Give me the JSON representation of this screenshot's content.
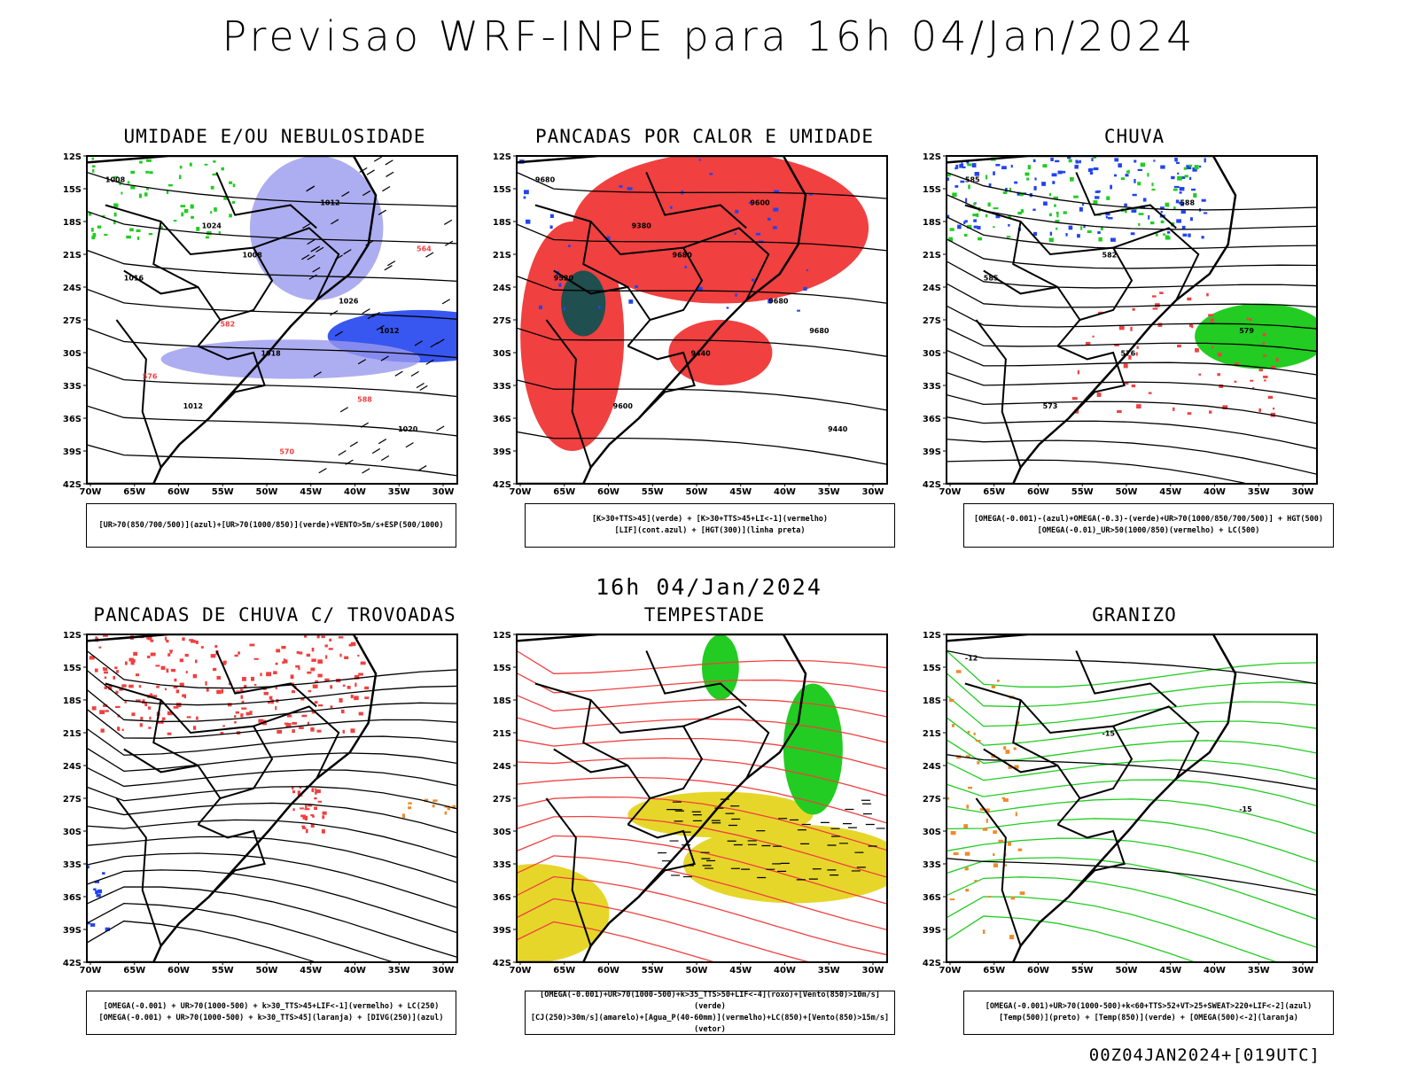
{
  "header": {
    "title": "Previsao WRF-INPE  para 16h 04/Jan/2024"
  },
  "middle_label": "16h 04/Jan/2024",
  "footer": {
    "stamp": "00Z04JAN2024+[019UTC]"
  },
  "axes": {
    "lat_ticks": [
      "12S",
      "15S",
      "18S",
      "21S",
      "24S",
      "27S",
      "30S",
      "33S",
      "36S",
      "39S",
      "42S"
    ],
    "lon_ticks": [
      "70W",
      "65W",
      "60W",
      "55W",
      "50W",
      "45W",
      "40W",
      "35W",
      "30W"
    ]
  },
  "colors": {
    "red": "#f04040",
    "green": "#22cc22",
    "blue": "#2244ee",
    "lightblue": "#9999ee",
    "darkgreen": "#1f4f4f",
    "yellow": "#e6d62a",
    "orange": "#f08a2a",
    "black": "#000000"
  },
  "panels": [
    {
      "title": "UMIDADE E/OU NEBULOSIDADE",
      "legend": [
        "[UR>70(850/700/500)](azul)+[UR>70(1000/850)](verde)+VENTO>5m/s+ESP(500/1000)"
      ],
      "labels": [
        "1008",
        "1008",
        "1012",
        "1012",
        "1012",
        "1016",
        "1018",
        "1020",
        "1024",
        "1026",
        "576",
        "570",
        "564",
        "582",
        "588"
      ]
    },
    {
      "title": "PANCADAS POR CALOR E UMIDADE",
      "legend": [
        "[K>30+TTS>45](verde) + [K>30+TTS>45+LI<-1](vermelho)",
        "[LIF](cont.azul) + [HGT(300)](linha preta)"
      ],
      "labels": [
        "9680",
        "9680",
        "9680",
        "9600",
        "9600",
        "9520",
        "9440",
        "9440",
        "9380",
        "9680"
      ]
    },
    {
      "title": "CHUVA",
      "legend": [
        "[OMEGA(-0.001)-(azul)+OMEGA(-0.3)-(verde)+UR>70(1000/850/700/500)] + HGT(500)",
        "[OMEGA(-0.01)_UR>50(1000/850)(vermelho) + LC(500)"
      ],
      "labels": [
        "585",
        "582",
        "579",
        "573",
        "588",
        "585",
        "576"
      ]
    },
    {
      "title": "PANCADAS DE CHUVA C/ TROVOADAS",
      "legend": [
        "[OMEGA(-0.001) + UR>70(1000-500) + k>30_TTS>45+LIF<-1](vermelho) + LC(250)",
        "[OMEGA(-0.001) + UR>70(1000-500) + k>30_TTS>45](laranja) + [DIVG(250)](azul)"
      ],
      "labels": []
    },
    {
      "title": "TEMPESTADE",
      "legend": [
        "[OMEGA(-0.001)+UR>70(1000-500)+k>35_TTS>50+LIF<-4](roxo)+[Vento(850)>10m/s](verde)",
        "[CJ(250)>30m/s](amarelo)+[Agua_P(40-60mm)](vermelho)+LC(850)+[Vento(850)>15m/s](vetor)"
      ],
      "labels": []
    },
    {
      "title": "GRANIZO",
      "legend": [
        "[OMEGA(-0.001)+UR>70(1000-500)+k<60+TTS>52+VT>25+SWEAT>220+LIF<-2](azul)",
        "[Temp(500)](preto) + [Temp(850)](verde) + [OMEGA(500)<-2](laranja)"
      ],
      "labels": [
        "-12",
        "-15",
        "-15"
      ]
    }
  ]
}
